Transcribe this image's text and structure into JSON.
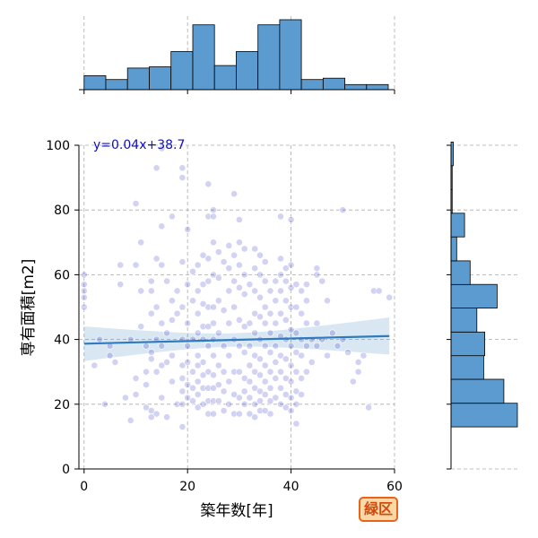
{
  "chart_data": {
    "type": "scatter",
    "xlabel": "築年数[年]",
    "ylabel": "専有面積[m2]",
    "xlim": [
      -1,
      60
    ],
    "ylim": [
      0,
      100
    ],
    "x_ticks": [
      0,
      20,
      40,
      60
    ],
    "y_ticks": [
      0,
      20,
      40,
      60,
      80,
      100
    ],
    "grid": true,
    "scatter_color": "#3232c8",
    "hist_color": "#5b9bd0",
    "line_color": "#2e7bbf",
    "annotation": "y=0.04x+38.7",
    "annotation_color": "#1010c0",
    "regression": {
      "slope": 0.04,
      "intercept": 38.7,
      "x_range": [
        0,
        59
      ]
    },
    "points": [
      [
        0,
        57
      ],
      [
        0,
        60
      ],
      [
        0,
        55
      ],
      [
        0,
        50
      ],
      [
        0,
        53
      ],
      [
        2,
        32
      ],
      [
        3,
        40
      ],
      [
        4,
        20
      ],
      [
        5,
        38
      ],
      [
        5,
        35
      ],
      [
        6,
        33
      ],
      [
        7,
        63
      ],
      [
        7,
        57
      ],
      [
        8,
        22
      ],
      [
        9,
        40
      ],
      [
        9,
        15
      ],
      [
        10,
        63
      ],
      [
        10,
        82
      ],
      [
        10,
        28
      ],
      [
        10,
        23
      ],
      [
        11,
        70
      ],
      [
        11,
        55
      ],
      [
        11,
        44
      ],
      [
        12,
        38
      ],
      [
        12,
        30
      ],
      [
        12,
        26
      ],
      [
        12,
        19
      ],
      [
        13,
        58
      ],
      [
        13,
        55
      ],
      [
        13,
        48
      ],
      [
        13,
        36
      ],
      [
        13,
        34
      ],
      [
        13,
        18
      ],
      [
        13,
        16
      ],
      [
        14,
        93
      ],
      [
        14,
        65
      ],
      [
        14,
        50
      ],
      [
        14,
        40
      ],
      [
        14,
        30
      ],
      [
        14,
        17
      ],
      [
        15,
        99
      ],
      [
        15,
        75
      ],
      [
        15,
        63
      ],
      [
        15,
        45
      ],
      [
        15,
        38
      ],
      [
        15,
        32
      ],
      [
        15,
        22
      ],
      [
        16,
        58
      ],
      [
        16,
        42
      ],
      [
        16,
        33
      ],
      [
        16,
        16
      ],
      [
        17,
        78
      ],
      [
        17,
        52
      ],
      [
        17,
        46
      ],
      [
        17,
        35
      ],
      [
        17,
        27
      ],
      [
        18,
        55
      ],
      [
        18,
        48
      ],
      [
        18,
        20
      ],
      [
        19,
        93
      ],
      [
        19,
        90
      ],
      [
        19,
        64
      ],
      [
        19,
        50
      ],
      [
        19,
        40
      ],
      [
        19,
        32
      ],
      [
        19,
        28
      ],
      [
        19,
        24
      ],
      [
        19,
        20
      ],
      [
        19,
        13
      ],
      [
        20,
        74
      ],
      [
        20,
        57
      ],
      [
        20,
        45
      ],
      [
        20,
        38
      ],
      [
        20,
        33
      ],
      [
        20,
        26
      ],
      [
        20,
        22
      ],
      [
        21,
        61
      ],
      [
        21,
        52
      ],
      [
        21,
        40
      ],
      [
        21,
        30
      ],
      [
        21,
        25
      ],
      [
        21,
        21
      ],
      [
        22,
        63
      ],
      [
        22,
        55
      ],
      [
        22,
        48
      ],
      [
        22,
        42
      ],
      [
        22,
        35
      ],
      [
        22,
        32
      ],
      [
        22,
        27
      ],
      [
        22,
        23
      ],
      [
        22,
        19
      ],
      [
        23,
        66
      ],
      [
        23,
        57
      ],
      [
        23,
        51
      ],
      [
        23,
        44
      ],
      [
        23,
        40
      ],
      [
        23,
        33
      ],
      [
        23,
        29
      ],
      [
        23,
        25
      ],
      [
        23,
        20
      ],
      [
        24,
        88
      ],
      [
        24,
        78
      ],
      [
        24,
        65
      ],
      [
        24,
        58
      ],
      [
        24,
        50
      ],
      [
        24,
        44
      ],
      [
        24,
        38
      ],
      [
        24,
        30
      ],
      [
        24,
        25
      ],
      [
        24,
        21
      ],
      [
        24,
        17
      ],
      [
        25,
        80
      ],
      [
        25,
        78
      ],
      [
        25,
        70
      ],
      [
        25,
        60
      ],
      [
        25,
        50
      ],
      [
        25,
        45
      ],
      [
        25,
        40
      ],
      [
        25,
        35
      ],
      [
        25,
        29
      ],
      [
        25,
        25
      ],
      [
        25,
        21
      ],
      [
        25,
        17
      ],
      [
        26,
        67
      ],
      [
        26,
        59
      ],
      [
        26,
        52
      ],
      [
        26,
        42
      ],
      [
        26,
        32
      ],
      [
        26,
        26
      ],
      [
        26,
        21
      ],
      [
        27,
        64
      ],
      [
        27,
        49
      ],
      [
        27,
        38
      ],
      [
        27,
        30
      ],
      [
        27,
        24
      ],
      [
        27,
        18
      ],
      [
        28,
        69
      ],
      [
        28,
        62
      ],
      [
        28,
        55
      ],
      [
        28,
        45
      ],
      [
        28,
        35
      ],
      [
        28,
        27
      ],
      [
        28,
        20
      ],
      [
        29,
        85
      ],
      [
        29,
        66
      ],
      [
        29,
        58
      ],
      [
        29,
        50
      ],
      [
        29,
        40
      ],
      [
        29,
        30
      ],
      [
        29,
        23
      ],
      [
        29,
        17
      ],
      [
        30,
        77
      ],
      [
        30,
        70
      ],
      [
        30,
        63
      ],
      [
        30,
        56
      ],
      [
        30,
        46
      ],
      [
        30,
        38
      ],
      [
        30,
        30
      ],
      [
        30,
        22
      ],
      [
        30,
        17
      ],
      [
        31,
        68
      ],
      [
        31,
        60
      ],
      [
        31,
        54
      ],
      [
        31,
        44
      ],
      [
        31,
        36
      ],
      [
        31,
        28
      ],
      [
        31,
        24
      ],
      [
        31,
        20
      ],
      [
        32,
        57
      ],
      [
        32,
        45
      ],
      [
        32,
        38
      ],
      [
        32,
        32
      ],
      [
        32,
        27
      ],
      [
        32,
        22
      ],
      [
        32,
        17
      ],
      [
        33,
        68
      ],
      [
        33,
        62
      ],
      [
        33,
        55
      ],
      [
        33,
        48
      ],
      [
        33,
        42
      ],
      [
        33,
        35
      ],
      [
        33,
        30
      ],
      [
        33,
        25
      ],
      [
        33,
        20
      ],
      [
        33,
        16
      ],
      [
        34,
        66
      ],
      [
        34,
        60
      ],
      [
        34,
        53
      ],
      [
        34,
        47
      ],
      [
        34,
        40
      ],
      [
        34,
        34
      ],
      [
        34,
        29
      ],
      [
        34,
        24
      ],
      [
        34,
        21
      ],
      [
        34,
        18
      ],
      [
        35,
        64
      ],
      [
        35,
        58
      ],
      [
        35,
        50
      ],
      [
        35,
        45
      ],
      [
        35,
        38
      ],
      [
        35,
        32
      ],
      [
        35,
        27
      ],
      [
        35,
        23
      ],
      [
        35,
        18
      ],
      [
        36,
        55
      ],
      [
        36,
        48
      ],
      [
        36,
        42
      ],
      [
        36,
        36
      ],
      [
        36,
        30
      ],
      [
        36,
        25
      ],
      [
        36,
        21
      ],
      [
        36,
        17
      ],
      [
        37,
        58
      ],
      [
        37,
        52
      ],
      [
        37,
        45
      ],
      [
        37,
        38
      ],
      [
        37,
        33
      ],
      [
        37,
        28
      ],
      [
        37,
        22
      ],
      [
        38,
        78
      ],
      [
        38,
        65
      ],
      [
        38,
        60
      ],
      [
        38,
        55
      ],
      [
        38,
        48
      ],
      [
        38,
        41
      ],
      [
        38,
        35
      ],
      [
        38,
        30
      ],
      [
        38,
        25
      ],
      [
        38,
        20
      ],
      [
        39,
        62
      ],
      [
        39,
        58
      ],
      [
        39,
        52
      ],
      [
        39,
        46
      ],
      [
        39,
        40
      ],
      [
        39,
        34
      ],
      [
        39,
        28
      ],
      [
        39,
        23
      ],
      [
        39,
        19
      ],
      [
        40,
        77
      ],
      [
        40,
        63
      ],
      [
        40,
        56
      ],
      [
        40,
        50
      ],
      [
        40,
        43
      ],
      [
        40,
        38
      ],
      [
        40,
        32
      ],
      [
        40,
        27
      ],
      [
        40,
        22
      ],
      [
        40,
        18
      ],
      [
        41,
        57
      ],
      [
        41,
        50
      ],
      [
        41,
        42
      ],
      [
        41,
        36
      ],
      [
        41,
        30
      ],
      [
        41,
        24
      ],
      [
        41,
        20
      ],
      [
        41,
        14
      ],
      [
        42,
        55
      ],
      [
        42,
        48
      ],
      [
        42,
        40
      ],
      [
        42,
        35
      ],
      [
        42,
        28
      ],
      [
        42,
        23
      ],
      [
        43,
        57
      ],
      [
        43,
        52
      ],
      [
        43,
        45
      ],
      [
        43,
        38
      ],
      [
        43,
        30
      ],
      [
        44,
        40
      ],
      [
        44,
        33
      ],
      [
        45,
        62
      ],
      [
        45,
        60
      ],
      [
        45,
        45
      ],
      [
        45,
        38
      ],
      [
        46,
        58
      ],
      [
        46,
        40
      ],
      [
        47,
        52
      ],
      [
        47,
        35
      ],
      [
        48,
        42
      ],
      [
        49,
        38
      ],
      [
        50,
        80
      ],
      [
        50,
        40
      ],
      [
        51,
        36
      ],
      [
        52,
        27
      ],
      [
        53,
        33
      ],
      [
        53,
        30
      ],
      [
        54,
        35
      ],
      [
        55,
        19
      ],
      [
        56,
        55
      ],
      [
        57,
        55
      ],
      [
        59,
        53
      ]
    ],
    "x_hist": {
      "bin_edges": [
        0,
        4.2,
        8.4,
        12.6,
        16.8,
        21,
        25.2,
        29.4,
        33.6,
        37.8,
        42,
        46.2,
        50.4,
        54.6,
        58.8
      ],
      "counts": [
        11,
        8,
        17,
        18,
        30,
        51,
        19,
        30,
        51,
        55,
        8,
        9,
        4,
        4
      ]
    },
    "y_hist": {
      "bin_edges": [
        13,
        20.3,
        27.7,
        35,
        42.3,
        49.7,
        57,
        64.3,
        71.7,
        79,
        86.3,
        93.7,
        101
      ],
      "counts": [
        59,
        47,
        29,
        30,
        23,
        41,
        17,
        5,
        12,
        1,
        1,
        2
      ]
    }
  },
  "badge": {
    "label": "緑区",
    "color": "#e8641b"
  }
}
